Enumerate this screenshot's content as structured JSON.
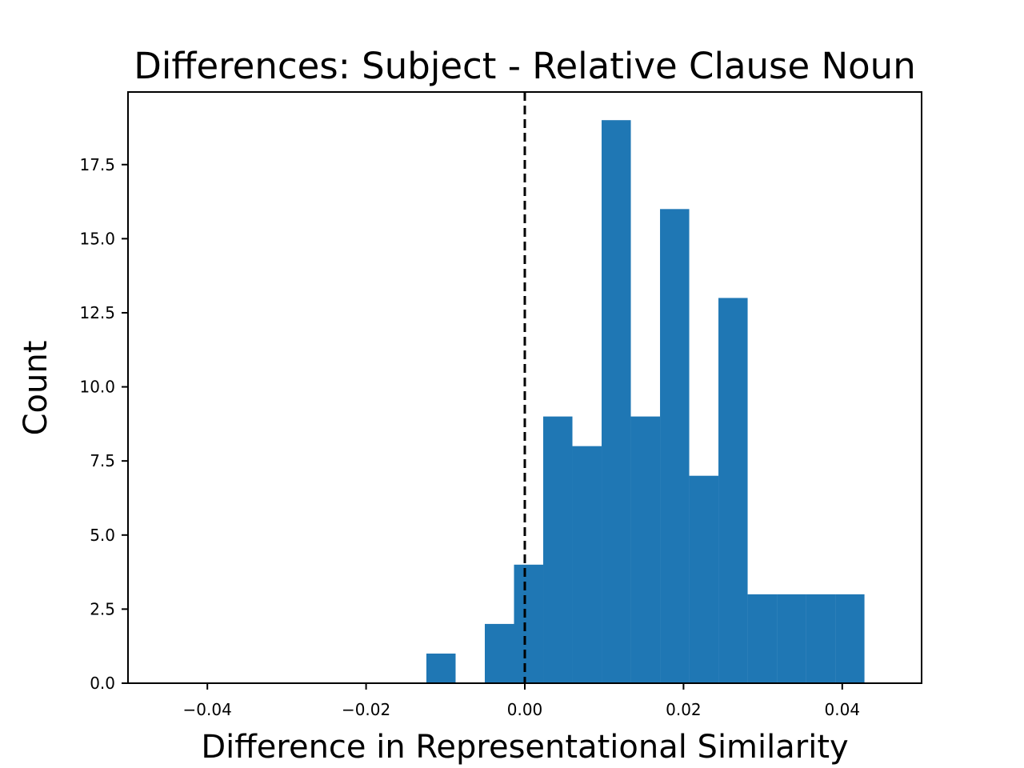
{
  "chart_data": {
    "type": "bar",
    "title": "Differences: Subject - Relative Clause Noun",
    "xlabel": "Difference in Representational Similarity",
    "ylabel": "Count",
    "xlim": [
      -0.05,
      0.05
    ],
    "ylim": [
      0,
      19.95
    ],
    "xticks": [
      -0.04,
      -0.02,
      0.0,
      0.02,
      0.04
    ],
    "xtick_labels": [
      "−0.04",
      "−0.02",
      "0.00",
      "0.02",
      "0.04"
    ],
    "yticks": [
      0,
      2.5,
      5,
      7.5,
      10,
      12.5,
      15,
      17.5
    ],
    "ytick_labels": [
      "0.0",
      "2.5",
      "5.0",
      "7.5",
      "10.0",
      "12.5",
      "15.0",
      "17.5"
    ],
    "bin_width": 0.00368,
    "bins": [
      {
        "x0": -0.0124,
        "x1": -0.00872,
        "count": 1
      },
      {
        "x0": -0.00504,
        "x1": -0.00136,
        "count": 2
      },
      {
        "x0": -0.00136,
        "x1": 0.00232,
        "count": 4
      },
      {
        "x0": 0.00232,
        "x1": 0.006,
        "count": 9
      },
      {
        "x0": 0.006,
        "x1": 0.00968,
        "count": 8
      },
      {
        "x0": 0.00968,
        "x1": 0.01336,
        "count": 19
      },
      {
        "x0": 0.01336,
        "x1": 0.01704,
        "count": 9
      },
      {
        "x0": 0.01704,
        "x1": 0.02072,
        "count": 16
      },
      {
        "x0": 0.02072,
        "x1": 0.0244,
        "count": 7
      },
      {
        "x0": 0.0244,
        "x1": 0.02808,
        "count": 13
      },
      {
        "x0": 0.02808,
        "x1": 0.03176,
        "count": 3
      },
      {
        "x0": 0.03176,
        "x1": 0.03544,
        "count": 3
      },
      {
        "x0": 0.03544,
        "x1": 0.03912,
        "count": 3
      },
      {
        "x0": 0.03912,
        "x1": 0.0428,
        "count": 3
      }
    ],
    "reference_line": {
      "x": 0.0,
      "style": "dashed",
      "color": "#000000"
    },
    "bar_color": "#1f77b4",
    "grid": false
  }
}
